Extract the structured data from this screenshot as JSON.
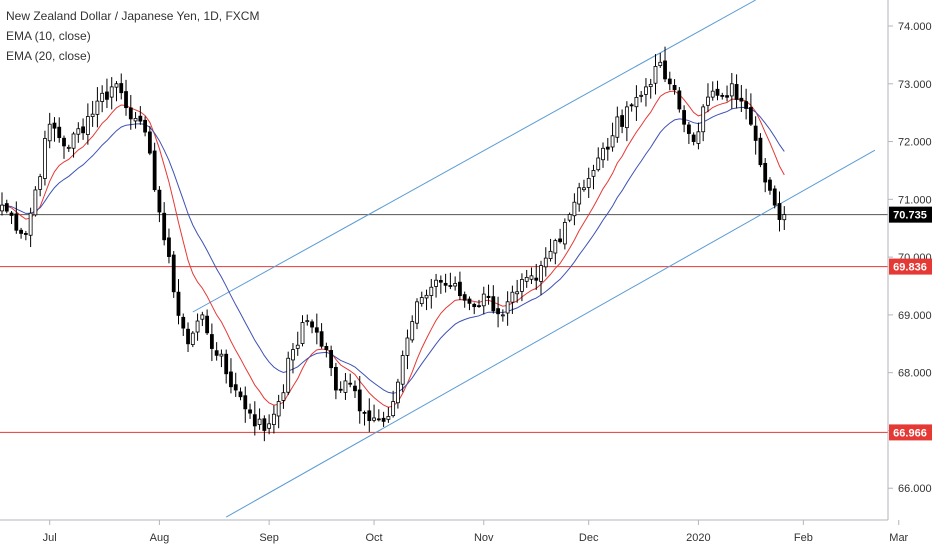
{
  "chart_data": {
    "type": "candlestick",
    "title": "New Zealand Dollar / Japanese Yen, 1D, FXCM",
    "indicators": [
      {
        "name": "EMA (10, close)",
        "color": "#e53935"
      },
      {
        "name": "EMA (20, close)",
        "color": "#3f51b5"
      }
    ],
    "y_axis": {
      "ticks": [
        "74.000",
        "73.000",
        "72.000",
        "71.000",
        "70.000",
        "69.000",
        "68.000",
        "67.000",
        "66.000"
      ],
      "tick_values": [
        74,
        73,
        72,
        71,
        70,
        69,
        68,
        67,
        66
      ],
      "range": [
        65.45,
        74.45
      ],
      "position": "right"
    },
    "x_axis": {
      "labels": [
        "Jul",
        "Aug",
        "Sep",
        "Oct",
        "Nov",
        "Dec",
        "2020",
        "Feb",
        "Mar"
      ],
      "label_day_index": [
        10,
        33,
        56,
        78,
        101,
        123,
        146,
        168,
        188
      ]
    },
    "current_price": {
      "value": 70.735,
      "label": "70.735",
      "color": "#000000"
    },
    "horizontal_levels": [
      {
        "value": 69.836,
        "label": "69.836",
        "color": "#e53935"
      },
      {
        "value": 66.966,
        "label": "66.966",
        "color": "#e53935"
      }
    ],
    "channel_lines": [
      {
        "name": "channel-upper",
        "x0": 40,
        "y0": 69.05,
        "x1": 158,
        "y1": 74.45,
        "color": "#5b9bd5"
      },
      {
        "name": "channel-lower",
        "x0": 47,
        "y0": 65.5,
        "x1": 183,
        "y1": 71.85,
        "color": "#5b9bd5"
      }
    ],
    "key_points": [
      [
        0,
        70.9
      ],
      [
        5,
        70.4
      ],
      [
        10,
        72.3
      ],
      [
        14,
        71.9
      ],
      [
        20,
        72.7
      ],
      [
        24,
        73.0
      ],
      [
        28,
        72.4
      ],
      [
        31,
        71.8
      ],
      [
        34,
        70.3
      ],
      [
        36,
        69.4
      ],
      [
        39,
        68.5
      ],
      [
        42,
        69.0
      ],
      [
        45,
        68.3
      ],
      [
        49,
        67.7
      ],
      [
        52,
        67.3
      ],
      [
        55,
        67.0
      ],
      [
        58,
        67.5
      ],
      [
        61,
        68.4
      ],
      [
        64,
        68.9
      ],
      [
        66,
        68.7
      ],
      [
        68,
        68.4
      ],
      [
        70,
        67.7
      ],
      [
        73,
        67.8
      ],
      [
        76,
        67.3
      ],
      [
        79,
        67.2
      ],
      [
        82,
        67.5
      ],
      [
        85,
        68.6
      ],
      [
        88,
        69.3
      ],
      [
        91,
        69.6
      ],
      [
        94,
        69.5
      ],
      [
        98,
        69.2
      ],
      [
        102,
        69.3
      ],
      [
        105,
        69.0
      ],
      [
        108,
        69.4
      ],
      [
        112,
        69.6
      ],
      [
        115,
        70.1
      ],
      [
        118,
        70.6
      ],
      [
        121,
        71.2
      ],
      [
        124,
        71.5
      ],
      [
        128,
        72.1
      ],
      [
        131,
        72.6
      ],
      [
        134,
        72.8
      ],
      [
        137,
        73.3
      ],
      [
        140,
        73.0
      ],
      [
        143,
        72.3
      ],
      [
        145,
        72.0
      ],
      [
        147,
        72.6
      ],
      [
        150,
        72.8
      ],
      [
        153,
        73.0
      ],
      [
        155,
        72.7
      ],
      [
        157,
        72.3
      ],
      [
        159,
        71.6
      ],
      [
        160,
        71.3
      ],
      [
        162,
        70.9
      ],
      [
        163,
        70.65
      ],
      [
        164,
        70.735
      ]
    ]
  }
}
